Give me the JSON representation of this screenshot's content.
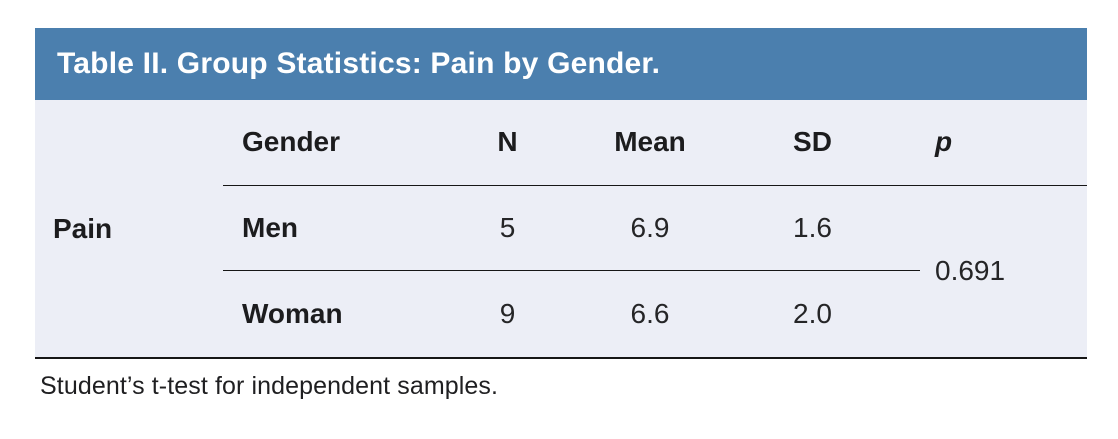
{
  "title": "Table II. Group Statistics: Pain by Gender.",
  "colors": {
    "title_bar_bg": "#4b7fae",
    "title_text": "#ffffff",
    "table_body_bg": "#eceef6",
    "rule_line": "#161616",
    "text": "#1c1c1e"
  },
  "table": {
    "row_group_label": "Pain",
    "columns": [
      "Gender",
      "N",
      "Mean",
      "SD",
      "p"
    ],
    "rows": [
      {
        "gender": "Men",
        "n": "5",
        "mean": "6.9",
        "sd": "1.6"
      },
      {
        "gender": "Woman",
        "n": "9",
        "mean": "6.6",
        "sd": "2.0"
      }
    ],
    "p_value": "0.691"
  },
  "footnote": "Student’s t-test for independent samples."
}
